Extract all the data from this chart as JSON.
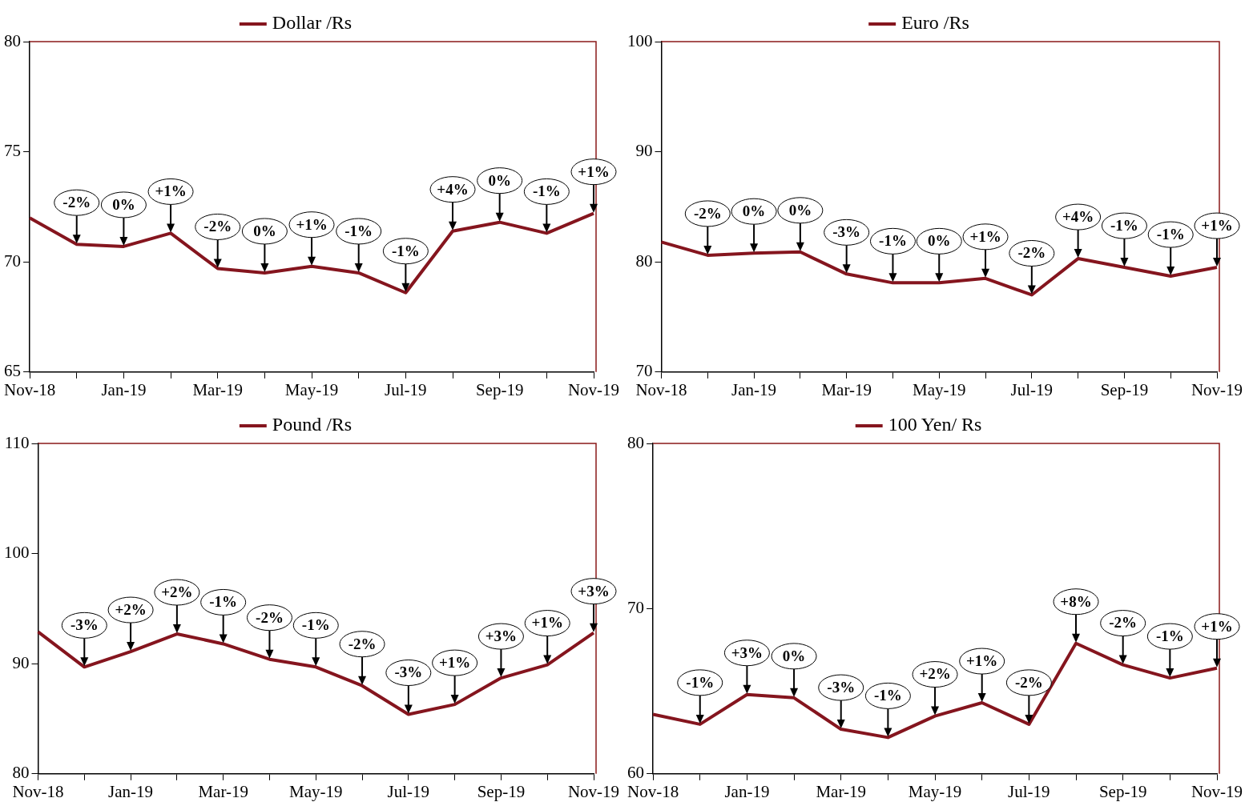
{
  "chart_data": [
    {
      "type": "line",
      "categories": [
        "Nov-18",
        null,
        "Jan-19",
        null,
        "Mar-19",
        null,
        "May-19",
        null,
        "Jul-19",
        null,
        "Sep-19",
        null,
        "Nov-19"
      ],
      "ylim": [
        65,
        80
      ],
      "yticks": [
        65,
        70,
        75,
        80
      ],
      "legend": "top",
      "grid": false,
      "marker": "none",
      "series": [
        {
          "name": "Dollar /Rs",
          "color": "#85151e",
          "values": [
            72.0,
            70.8,
            70.7,
            71.3,
            69.7,
            69.5,
            69.8,
            69.5,
            68.6,
            71.4,
            71.8,
            71.3,
            72.2
          ]
        }
      ],
      "annotations": [
        {
          "text": "-2%",
          "y": 70.8
        },
        {
          "text": "0%",
          "y": 70.7
        },
        {
          "text": "+1%",
          "y": 71.3
        },
        {
          "text": "-2%",
          "y": 69.7
        },
        {
          "text": "0%",
          "y": 69.5
        },
        {
          "text": "+1%",
          "y": 69.8
        },
        {
          "text": "-1%",
          "y": 69.5
        },
        {
          "text": "-1%",
          "y": 68.6
        },
        {
          "text": "+4%",
          "y": 71.4
        },
        {
          "text": "0%",
          "y": 71.8
        },
        {
          "text": "-1%",
          "y": 71.3
        },
        {
          "text": "+1%",
          "y": 72.2
        }
      ]
    },
    {
      "type": "line",
      "categories": [
        "Nov-18",
        null,
        "Jan-19",
        null,
        "Mar-19",
        null,
        "May-19",
        null,
        "Jul-19",
        null,
        "Sep-19",
        null,
        "Nov-19"
      ],
      "ylim": [
        70,
        100
      ],
      "yticks": [
        70,
        80,
        90,
        100
      ],
      "legend": "top",
      "grid": false,
      "marker": "none",
      "series": [
        {
          "name": "Euro /Rs",
          "color": "#85151e",
          "values": [
            81.8,
            80.6,
            80.8,
            80.9,
            78.9,
            78.1,
            78.1,
            78.5,
            77.0,
            80.3,
            79.5,
            78.7,
            79.5
          ]
        }
      ],
      "annotations": [
        {
          "text": "-2%",
          "y": 80.6
        },
        {
          "text": "0%",
          "y": 80.8
        },
        {
          "text": "0%",
          "y": 80.9
        },
        {
          "text": "-3%",
          "y": 78.9
        },
        {
          "text": "-1%",
          "y": 78.1
        },
        {
          "text": "0%",
          "y": 78.1
        },
        {
          "text": "+1%",
          "y": 78.5
        },
        {
          "text": "-2%",
          "y": 77.0
        },
        {
          "text": "+4%",
          "y": 80.3
        },
        {
          "text": "-1%",
          "y": 79.5
        },
        {
          "text": "-1%",
          "y": 78.7
        },
        {
          "text": "+1%",
          "y": 79.5
        }
      ]
    },
    {
      "type": "line",
      "categories": [
        "Nov-18",
        null,
        "Jan-19",
        null,
        "Mar-19",
        null,
        "May-19",
        null,
        "Jul-19",
        null,
        "Sep-19",
        null,
        "Nov-19"
      ],
      "ylim": [
        80,
        110
      ],
      "yticks": [
        80,
        90,
        100,
        110
      ],
      "legend": "top",
      "grid": false,
      "marker": "none",
      "series": [
        {
          "name": "Pound /Rs",
          "color": "#85151e",
          "values": [
            92.9,
            89.7,
            91.1,
            92.7,
            91.8,
            90.4,
            89.7,
            88.0,
            85.4,
            86.3,
            88.7,
            89.9,
            92.8
          ]
        }
      ],
      "annotations": [
        {
          "text": "-3%",
          "y": 89.7
        },
        {
          "text": "+2%",
          "y": 91.1
        },
        {
          "text": "+2%",
          "y": 92.7
        },
        {
          "text": "-1%",
          "y": 91.8
        },
        {
          "text": "-2%",
          "y": 90.4
        },
        {
          "text": "-1%",
          "y": 89.7
        },
        {
          "text": "-2%",
          "y": 88.0
        },
        {
          "text": "-3%",
          "y": 85.4
        },
        {
          "text": "+1%",
          "y": 86.3
        },
        {
          "text": "+3%",
          "y": 88.7
        },
        {
          "text": "+1%",
          "y": 89.9
        },
        {
          "text": "+3%",
          "y": 92.8
        }
      ]
    },
    {
      "type": "line",
      "categories": [
        "Nov-18",
        null,
        "Jan-19",
        null,
        "Mar-19",
        null,
        "May-19",
        null,
        "Jul-19",
        null,
        "Sep-19",
        null,
        "Nov-19"
      ],
      "ylim": [
        60,
        80
      ],
      "yticks": [
        60,
        70,
        80
      ],
      "legend": "top",
      "grid": false,
      "marker": "none",
      "series": [
        {
          "name": "100 Yen/ Rs",
          "color": "#85151e",
          "values": [
            63.6,
            63.0,
            64.8,
            64.6,
            62.7,
            62.2,
            63.5,
            64.3,
            63.0,
            67.9,
            66.6,
            65.8,
            66.4
          ]
        }
      ],
      "annotations": [
        {
          "text": "-1%",
          "y": 63.0
        },
        {
          "text": "+3%",
          "y": 64.8
        },
        {
          "text": "0%",
          "y": 64.6
        },
        {
          "text": "-3%",
          "y": 62.7
        },
        {
          "text": "-1%",
          "y": 62.2
        },
        {
          "text": "+2%",
          "y": 63.5
        },
        {
          "text": "+1%",
          "y": 64.3
        },
        {
          "text": "-2%",
          "y": 63.0
        },
        {
          "text": "+8%",
          "y": 67.9
        },
        {
          "text": "-2%",
          "y": 66.6
        },
        {
          "text": "-1%",
          "y": 65.8
        },
        {
          "text": "+1%",
          "y": 66.4
        }
      ]
    }
  ]
}
